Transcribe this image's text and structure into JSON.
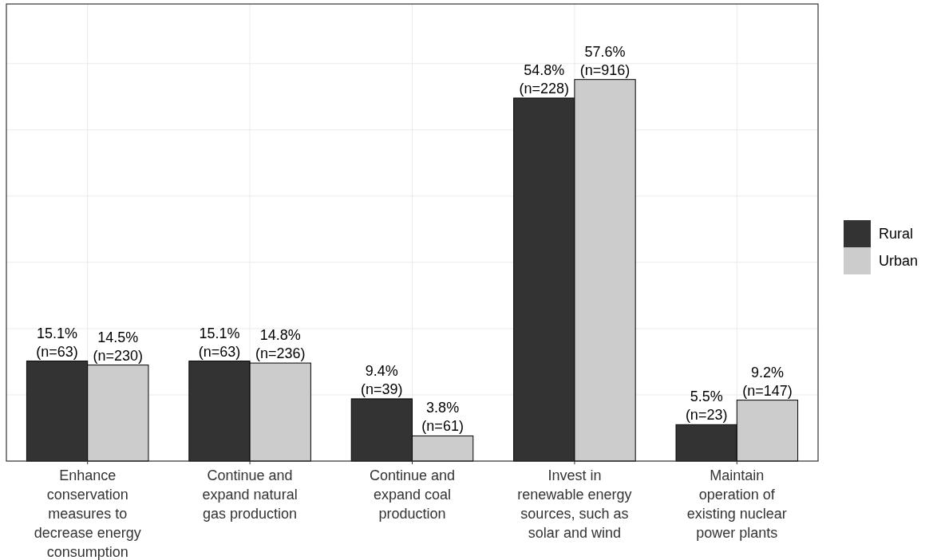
{
  "chart_data": {
    "type": "bar",
    "categories": [
      "Enhance conservation measures to decrease energy consumption",
      "Continue and expand natural gas production",
      "Continue and expand coal production",
      "Invest in renewable energy sources, such as solar and wind",
      "Maintain operation of existing nuclear power plants"
    ],
    "series": [
      {
        "name": "Rural",
        "color": "#333333",
        "values": [
          15.1,
          15.1,
          9.4,
          54.8,
          5.5
        ],
        "value_labels": [
          "15.1%\n(n=63)",
          "15.1%\n(n=63)",
          "9.4%\n(n=39)",
          "54.8%\n(n=228)",
          "5.5%\n(n=23)"
        ]
      },
      {
        "name": "Urban",
        "color": "#cccccc",
        "values": [
          14.5,
          14.8,
          3.8,
          57.6,
          9.2
        ],
        "value_labels": [
          "14.5%\n(n=230)",
          "14.8%\n(n=236)",
          "3.8%\n(n=61)",
          "57.6%\n(n=916)",
          "9.2%\n(n=147)"
        ]
      }
    ],
    "ylim": [
      0,
      69
    ],
    "yticks": [
      {
        "value": 0,
        "label": null
      },
      {
        "value": 10,
        "label": null
      },
      {
        "value": 20,
        "label": null
      },
      {
        "value": 30,
        "label": null
      },
      {
        "value": 40,
        "label": null
      },
      {
        "value": 50,
        "label": null
      },
      {
        "value": 60,
        "label": null
      }
    ],
    "tick_labels": "x",
    "grid": true,
    "legend": "right"
  }
}
